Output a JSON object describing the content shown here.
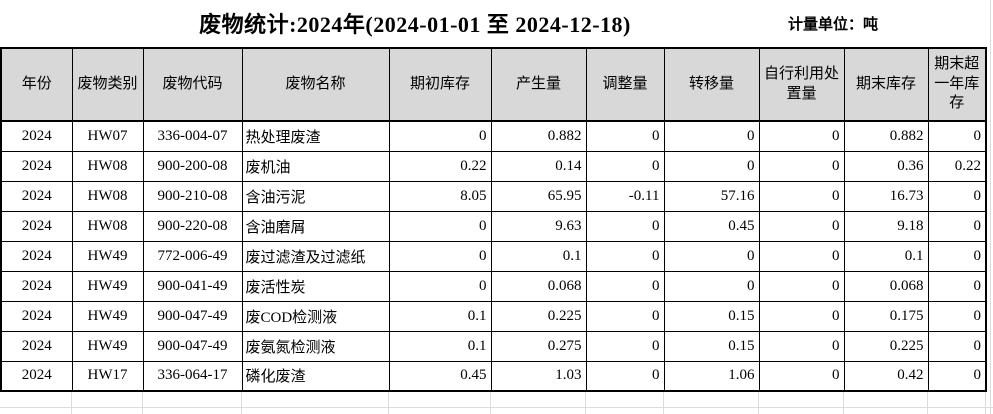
{
  "title": "废物统计:2024年(2024-01-01 至 2024-12-18)",
  "unit_label": "计量单位：吨",
  "table": {
    "headers": [
      "年份",
      "废物类别",
      "废物代码",
      "废物名称",
      "期初库存",
      "产生量",
      "调整量",
      "转移量",
      "自行利用处置量",
      "期末库存",
      "期末超一年库存"
    ],
    "rows": [
      [
        "2024",
        "HW07",
        "336-004-07",
        "热处理废渣",
        "0",
        "0.882",
        "0",
        "0",
        "0",
        "0.882",
        "0"
      ],
      [
        "2024",
        "HW08",
        "900-200-08",
        "废机油",
        "0.22",
        "0.14",
        "0",
        "0",
        "0",
        "0.36",
        "0.22"
      ],
      [
        "2024",
        "HW08",
        "900-210-08",
        "含油污泥",
        "8.05",
        "65.95",
        "-0.11",
        "57.16",
        "0",
        "16.73",
        "0"
      ],
      [
        "2024",
        "HW08",
        "900-220-08",
        "含油磨屑",
        "0",
        "9.63",
        "0",
        "0.45",
        "0",
        "9.18",
        "0"
      ],
      [
        "2024",
        "HW49",
        "772-006-49",
        "废过滤渣及过滤纸",
        "0",
        "0.1",
        "0",
        "0",
        "0",
        "0.1",
        "0"
      ],
      [
        "2024",
        "HW49",
        "900-041-49",
        "废活性炭",
        "0",
        "0.068",
        "0",
        "0",
        "0",
        "0.068",
        "0"
      ],
      [
        "2024",
        "HW49",
        "900-047-49",
        "废COD检测液",
        "0.1",
        "0.225",
        "0",
        "0.15",
        "0",
        "0.175",
        "0"
      ],
      [
        "2024",
        "HW49",
        "900-047-49",
        "废氨氮检测液",
        "0.1",
        "0.275",
        "0",
        "0.15",
        "0",
        "0.225",
        "0"
      ],
      [
        "2024",
        "HW17",
        "336-064-17",
        "磷化废渣",
        "0.45",
        "1.03",
        "0",
        "1.06",
        "0",
        "0.42",
        "0"
      ]
    ]
  },
  "colors": {
    "header_bg": "#d8d8d8",
    "table_border": "#000000",
    "sheet_gridline": "#dcdcdc"
  }
}
